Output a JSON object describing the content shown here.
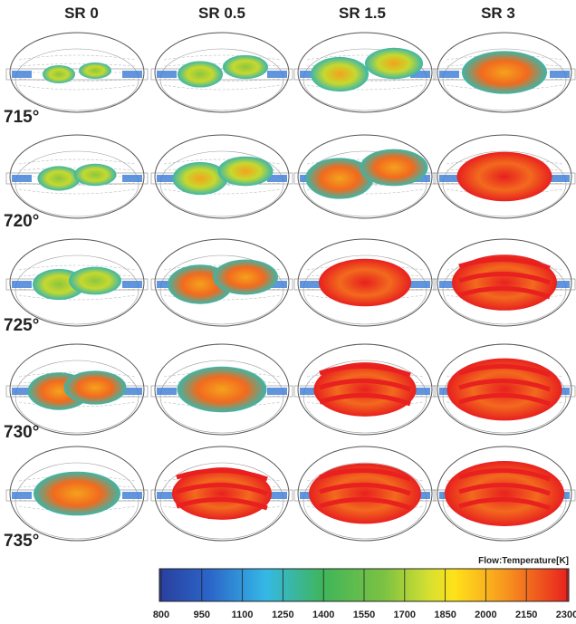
{
  "columns": [
    "SR 0",
    "SR 0.5",
    "SR 1.5",
    "SR 3"
  ],
  "rows": [
    "715°",
    "720°",
    "725°",
    "730°",
    "735°"
  ],
  "colorbar": {
    "title": "Flow:Temperature[K]",
    "ticks": [
      800,
      950,
      1100,
      1250,
      1400,
      1550,
      1700,
      1850,
      2000,
      2150,
      2300
    ]
  }
}
